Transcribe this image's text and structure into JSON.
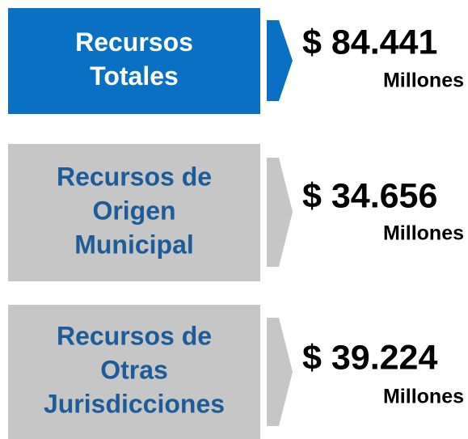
{
  "items": [
    {
      "label": [
        "Recursos",
        "Totales"
      ],
      "value": "$ 84.441",
      "unit": "Millones"
    },
    {
      "label": [
        "Recursos de",
        "Origen",
        "Municipal"
      ],
      "value": "$ 34.656",
      "unit": "Millones"
    },
    {
      "label": [
        "Recursos de",
        "Otras",
        "Jurisdicciones"
      ],
      "value": "$ 39.224",
      "unit": "Millones"
    }
  ]
}
